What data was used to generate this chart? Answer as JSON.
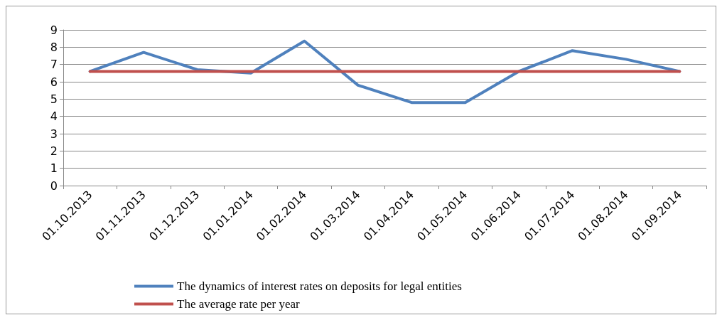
{
  "chart_data": {
    "type": "line",
    "categories": [
      "01.10.2013",
      "01.11.2013",
      "01.12.2013",
      "01.01.2014",
      "01.02.2014",
      "01.03.2014",
      "01.04.2014",
      "01.05.2014",
      "01.06.2014",
      "01.07.2014",
      "01.08.2014",
      "01.09.2014"
    ],
    "series": [
      {
        "name": "The dynamics of interest rates on deposits for legal entities",
        "color": "#4f81bd",
        "values": [
          6.6,
          7.7,
          6.7,
          6.5,
          8.35,
          5.8,
          4.8,
          4.8,
          6.6,
          7.8,
          7.3,
          6.6
        ]
      },
      {
        "name": "The average rate per year",
        "color": "#c0504d",
        "values": [
          6.6,
          6.6,
          6.6,
          6.6,
          6.6,
          6.6,
          6.6,
          6.6,
          6.6,
          6.6,
          6.6,
          6.6
        ]
      }
    ],
    "ylim": [
      0,
      9
    ],
    "yticks": [
      0,
      1,
      2,
      3,
      4,
      5,
      6,
      7,
      8,
      9
    ],
    "grid": "y",
    "legend": "bottom",
    "marker": "none",
    "line_style": "solid"
  }
}
